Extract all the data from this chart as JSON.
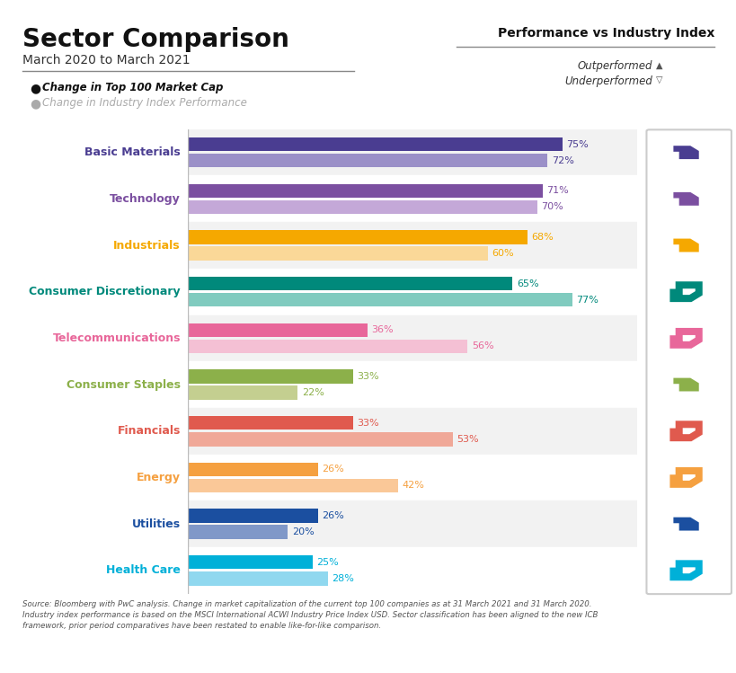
{
  "title": "Sector Comparison",
  "subtitle": "March 2020 to March 2021",
  "right_title": "Performance vs Industry Index",
  "legend_top_label": "Change in Top 100 Market Cap",
  "legend_bottom_label": "Change in Industry Index Performance",
  "outperformed_label": "Outperformed",
  "underperformed_label": "Underperformed",
  "footnote": "Source: Bloomberg with PwC analysis. Change in market capitalization of the current top 100 companies as at 31 March 2021 and 31 March 2020.\nIndustry index performance is based on the MSCI International ACWI Industry Price Index USD. Sector classification has been aligned to the new ICB\nframework, prior period comparatives have been restated to enable like-for-like comparison.",
  "sectors": [
    "Basic Materials",
    "Technology",
    "Industrials",
    "Consumer Discretionary",
    "Telecommunications",
    "Consumer Staples",
    "Financials",
    "Energy",
    "Utilities",
    "Health Care"
  ],
  "top100_values": [
    75,
    71,
    68,
    65,
    36,
    33,
    33,
    26,
    26,
    25
  ],
  "index_values": [
    72,
    70,
    60,
    77,
    56,
    22,
    53,
    42,
    20,
    28
  ],
  "bar_colors": [
    "#4A3D91",
    "#7B4FA0",
    "#F5A800",
    "#00897B",
    "#E8679A",
    "#8CB04A",
    "#E05A4E",
    "#F5A040",
    "#1B4FA0",
    "#00B0D8"
  ],
  "bar_light_colors": [
    "#9B90C8",
    "#C4A8D8",
    "#FAD898",
    "#80CBBF",
    "#F4C0D4",
    "#C4CF90",
    "#F0A898",
    "#FAC898",
    "#8098C8",
    "#90D8EF"
  ],
  "label_colors": [
    "#4A3D91",
    "#7B4FA0",
    "#F5A800",
    "#00897B",
    "#E8679A",
    "#8CB04A",
    "#E05A4E",
    "#F5A040",
    "#1B4FA0",
    "#00B0D8"
  ],
  "outperformed": [
    true,
    true,
    true,
    false,
    false,
    true,
    false,
    false,
    true,
    false
  ],
  "thumb_colors": [
    "#4A3D91",
    "#7B4FA0",
    "#F5A800",
    "#00897B",
    "#E8679A",
    "#8CB04A",
    "#E05A4E",
    "#F5A040",
    "#1B4FA0",
    "#00B0D8"
  ],
  "background_color": "#FFFFFF",
  "row_alt_color": "#F2F2F2",
  "row_white_color": "#FFFFFF"
}
